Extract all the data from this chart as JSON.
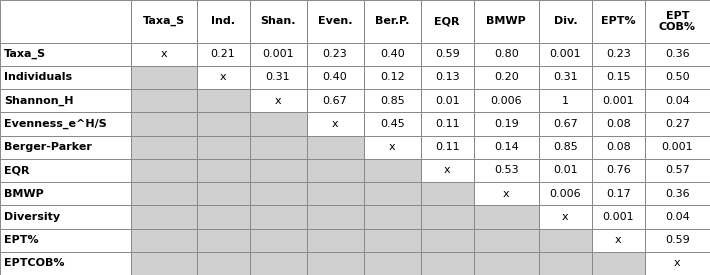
{
  "col_headers": [
    "Taxa_S",
    "Ind.",
    "Shan.",
    "Even.",
    "Ber.P.",
    "EQR",
    "BMWP",
    "Div.",
    "EPT%",
    "EPT\nCOB%"
  ],
  "row_headers": [
    "Taxa_S",
    "Individuals",
    "Shannon_H",
    "Evenness_e^H/S",
    "Berger-Parker",
    "EQR",
    "BMWP",
    "Diversity",
    "EPT%",
    "EPTCOB%"
  ],
  "cell_data": [
    [
      "x",
      "0.21",
      "0.001",
      "0.23",
      "0.40",
      "0.59",
      "0.80",
      "0.001",
      "0.23",
      "0.36"
    ],
    [
      "",
      "x",
      "0.31",
      "0.40",
      "0.12",
      "0.13",
      "0.20",
      "0.31",
      "0.15",
      "0.50"
    ],
    [
      "",
      "",
      "x",
      "0.67",
      "0.85",
      "0.01",
      "0.006",
      "1",
      "0.001",
      "0.04"
    ],
    [
      "",
      "",
      "",
      "x",
      "0.45",
      "0.11",
      "0.19",
      "0.67",
      "0.08",
      "0.27"
    ],
    [
      "",
      "",
      "",
      "",
      "x",
      "0.11",
      "0.14",
      "0.85",
      "0.08",
      "0.001"
    ],
    [
      "",
      "",
      "",
      "",
      "",
      "x",
      "0.53",
      "0.01",
      "0.76",
      "0.57"
    ],
    [
      "",
      "",
      "",
      "",
      "",
      "",
      "x",
      "0.006",
      "0.17",
      "0.36"
    ],
    [
      "",
      "",
      "",
      "",
      "",
      "",
      "",
      "x",
      "0.001",
      "0.04"
    ],
    [
      "",
      "",
      "",
      "",
      "",
      "",
      "",
      "",
      "x",
      "0.59"
    ],
    [
      "",
      "",
      "",
      "",
      "",
      "",
      "",
      "",
      "",
      "x"
    ]
  ],
  "gray_color": "#d0d0d0",
  "white_color": "#ffffff",
  "border_color": "#888888",
  "text_color": "#000000",
  "header_fontsize": 8.0,
  "cell_fontsize": 8.0,
  "row_header_fontsize": 8.0,
  "figsize": [
    7.1,
    2.75
  ],
  "dpi": 100
}
